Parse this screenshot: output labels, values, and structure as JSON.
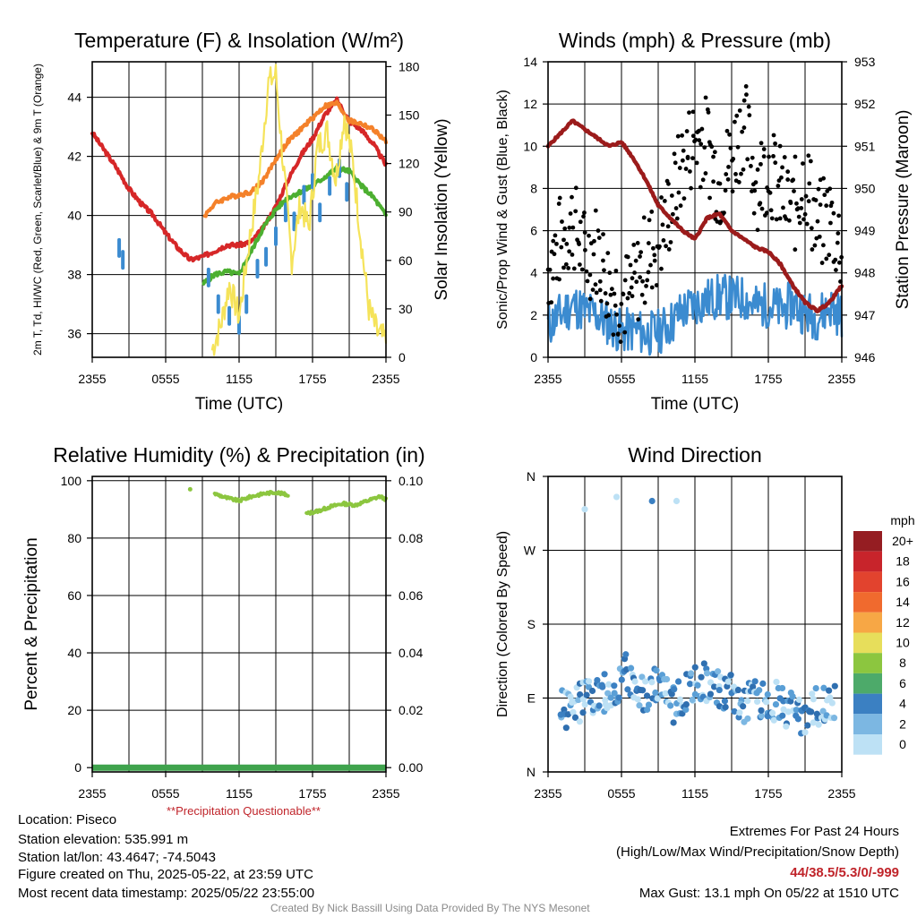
{
  "chart_data": [
    {
      "type": "line",
      "title": "Temperature (F) & Insolation (W/m²)",
      "xlabel": "Time (UTC)",
      "ylabel_left": "2m T, Td, HI/WC (Red, Green, Scarlet/Blue) & 9m T (Orange)",
      "ylabel_right": "Solar Insolation (Yellow)",
      "x_ticks": [
        "2355",
        "0555",
        "1155",
        "1755",
        "2355"
      ],
      "ylim": [
        35.2,
        45.2
      ],
      "y_ticks": [
        "36",
        "38",
        "40",
        "42",
        "44"
      ],
      "y2lim": [
        0,
        183
      ],
      "y2_ticks": [
        "0",
        "30",
        "60",
        "90",
        "120",
        "150",
        "180"
      ],
      "series": [
        {
          "key": "temp_2m",
          "color": "#d62728",
          "x": [
            0,
            1,
            2,
            3,
            4,
            5,
            6,
            7,
            8,
            9,
            10,
            11,
            12,
            13,
            14,
            15,
            16,
            17,
            18,
            19,
            20,
            21,
            22,
            23,
            24
          ],
          "values": [
            42.8,
            42.2,
            41.6,
            40.9,
            40.4,
            40.0,
            39.4,
            38.9,
            38.5,
            38.6,
            38.8,
            39.0,
            39.0,
            39.1,
            39.6,
            40.3,
            41.2,
            42.0,
            42.6,
            43.4,
            43.9,
            43.2,
            42.9,
            42.4,
            41.7
          ]
        },
        {
          "key": "temp_9m",
          "color": "#f4812a",
          "x": [
            9.2,
            10,
            11,
            12,
            13,
            14,
            15,
            16,
            17,
            18,
            19,
            20,
            21,
            22,
            23,
            24
          ],
          "values": [
            40.0,
            40.4,
            40.6,
            40.7,
            40.8,
            41.2,
            41.9,
            42.5,
            42.9,
            43.3,
            43.7,
            43.8,
            43.2,
            43.1,
            42.9,
            42.5
          ]
        },
        {
          "key": "dewpoint_2m",
          "color": "#4caf30",
          "x": [
            9.1,
            10,
            11,
            12,
            13,
            14,
            15,
            16,
            17,
            18,
            19,
            20,
            21,
            22,
            23,
            24
          ],
          "values": [
            37.7,
            38.0,
            38.1,
            38.0,
            38.8,
            39.6,
            40.2,
            40.6,
            40.8,
            41.0,
            41.3,
            41.6,
            41.5,
            41.0,
            40.6,
            40.0
          ]
        },
        {
          "key": "heat_index_wind_chill",
          "color": "#3b8bd0",
          "x": [
            2.2,
            2.5,
            9.5,
            10.3,
            11.2,
            12.0,
            12.6,
            13.5,
            14.2,
            15.0,
            15.8,
            16.5,
            17.3,
            18.0,
            18.6,
            19.4,
            20.2,
            20.8
          ],
          "values": [
            38.9,
            38.5,
            37.9,
            37.0,
            36.6,
            36.3,
            37.0,
            38.2,
            38.6,
            39.3,
            40.1,
            39.8,
            40.7,
            41.1,
            40.1,
            41.0,
            41.6,
            40.8
          ]
        },
        {
          "key": "solar_insolation",
          "axis": "right",
          "color": "#f5e35a",
          "x": [
            9.8,
            10.5,
            11.2,
            12.0,
            12.8,
            13.6,
            14.4,
            15.0,
            15.6,
            16.3,
            17.0,
            17.7,
            18.4,
            19.2,
            19.9,
            20.6,
            21.3,
            22.0,
            22.6,
            23.3,
            24.0
          ],
          "values": [
            5,
            20,
            45,
            25,
            70,
            110,
            170,
            175,
            120,
            60,
            95,
            80,
            130,
            140,
            110,
            150,
            120,
            70,
            30,
            15,
            10
          ]
        }
      ]
    },
    {
      "type": "line",
      "title": "Winds (mph) & Pressure (mb)",
      "xlabel": "Time (UTC)",
      "ylabel_left": "Sonic/Prop Wind & Gust (Blue, Black)",
      "ylabel_right": "Station Pressure (Maroon)",
      "x_ticks": [
        "2355",
        "0555",
        "1155",
        "1755",
        "2355"
      ],
      "ylim": [
        0,
        14
      ],
      "y_ticks": [
        "0",
        "2",
        "4",
        "6",
        "8",
        "10",
        "12",
        "14"
      ],
      "y2lim": [
        946,
        953
      ],
      "y2_ticks": [
        "946",
        "947",
        "948",
        "949",
        "950",
        "951",
        "952",
        "953"
      ],
      "series": [
        {
          "key": "wind_speed",
          "color": "#3b8bd0",
          "x": [
            0,
            1,
            2,
            3,
            4,
            5,
            6,
            7,
            8,
            9,
            10,
            11,
            12,
            13,
            14,
            15,
            16,
            17,
            18,
            19,
            20,
            21,
            22,
            23,
            24
          ],
          "values": [
            1.5,
            2.0,
            2.5,
            2.2,
            2.0,
            1.6,
            1.2,
            1.3,
            1.1,
            1.2,
            1.6,
            2.2,
            2.5,
            2.7,
            2.9,
            2.8,
            2.8,
            2.4,
            2.5,
            2.2,
            2.6,
            2.1,
            1.9,
            2.4,
            2.0
          ]
        },
        {
          "key": "wind_gust",
          "color": "#000000",
          "x": [
            0,
            1,
            2,
            3,
            4,
            5,
            6,
            7,
            8,
            9,
            10,
            11,
            12,
            13,
            14,
            15,
            16,
            17,
            18,
            19,
            20,
            21,
            22,
            23,
            24
          ],
          "values": [
            4.2,
            5.5,
            6.5,
            4.8,
            5.2,
            3.5,
            2.8,
            3.2,
            4.8,
            5.5,
            7.1,
            9.2,
            10.4,
            10.2,
            8.1,
            9.5,
            11.2,
            8.2,
            9.1,
            7.8,
            6.9,
            8.6,
            6.1,
            6.6,
            5.2
          ]
        },
        {
          "key": "station_pressure",
          "axis": "right",
          "color": "#9b1b1b",
          "x": [
            0,
            1,
            2,
            3,
            4,
            5,
            6,
            7,
            8,
            9,
            10,
            11,
            12,
            13,
            14,
            15,
            16,
            17,
            18,
            19,
            20,
            21,
            22,
            23,
            24
          ],
          "values": [
            951.0,
            951.3,
            951.6,
            951.4,
            951.2,
            951.0,
            951.1,
            950.7,
            950.2,
            949.6,
            949.3,
            949.0,
            948.8,
            949.3,
            949.4,
            949.0,
            948.8,
            948.6,
            948.5,
            948.2,
            947.7,
            947.3,
            947.1,
            947.3,
            947.7
          ]
        }
      ]
    },
    {
      "type": "line",
      "title": "Relative Humidity (%) & Precipitation (in)",
      "xlabel": "",
      "ylabel_left": "Percent & Precipitation",
      "x_ticks": [
        "2355",
        "0555",
        "1155",
        "1755",
        "2355"
      ],
      "ylim": [
        -1.5,
        101.5
      ],
      "y_ticks": [
        "0",
        "20",
        "40",
        "60",
        "80",
        "100"
      ],
      "y2lim": [
        -0.0015,
        0.1015
      ],
      "y2_ticks": [
        "0.00",
        "0.02",
        "0.04",
        "0.06",
        "0.08",
        "0.10"
      ],
      "note": "**Precipitation Questionable**",
      "series": [
        {
          "key": "relative_humidity",
          "color": "#8cc63f",
          "x": [
            8.0,
            10.0,
            11.0,
            12.0,
            13.0,
            14.0,
            15.0,
            16.0,
            17.5,
            18.5,
            19.5,
            20.5,
            21.5,
            22.5,
            23.5,
            24.0
          ],
          "values": [
            97.0,
            95.5,
            94.0,
            93.0,
            94.5,
            95.5,
            96.0,
            95.0,
            88.5,
            89.5,
            91.0,
            92.0,
            91.5,
            93.0,
            94.5,
            93.5
          ]
        },
        {
          "key": "precipitation",
          "color": "#3fa34d",
          "x": [
            0,
            24
          ],
          "values": [
            0,
            0
          ]
        }
      ]
    },
    {
      "type": "scatter",
      "title": "Wind Direction",
      "xlabel": "",
      "ylabel_left": "Direction (Colored By Speed)",
      "x_ticks": [
        "2355",
        "0555",
        "1155",
        "1755",
        "2355"
      ],
      "y_ticks": [
        "N",
        "E",
        "S",
        "W",
        "N"
      ],
      "ylim": [
        0,
        360
      ],
      "colorbar_unit": "mph",
      "colorbar_labels": [
        "20+",
        "18",
        "16",
        "14",
        "12",
        "10",
        "8",
        "6",
        "4",
        "2",
        "0"
      ],
      "colorbar_colors": [
        "#951d22",
        "#c8242b",
        "#e2432e",
        "#f06a2e",
        "#f7a745",
        "#e7de5b",
        "#8cc63f",
        "#4daa6a",
        "#3b80c2",
        "#7cb7e2",
        "#bde1f5"
      ],
      "series": [
        {
          "key": "direction_by_time",
          "x": [
            1.0,
            2.5,
            4.0,
            5.5,
            6.5,
            7.8,
            9.0,
            10.3,
            11.5,
            12.6,
            13.8,
            15.0,
            16.2,
            17.4,
            18.6,
            19.8,
            21.0,
            22.2,
            23.4
          ],
          "values": [
            75,
            85,
            90,
            105,
            120,
            95,
            110,
            80,
            100,
            115,
            100,
            95,
            85,
            90,
            85,
            75,
            70,
            80,
            85
          ]
        },
        {
          "key": "isolated_points",
          "x": [
            3.0,
            5.6,
            8.5,
            10.5
          ],
          "values": [
            320,
            335,
            330,
            330
          ]
        }
      ]
    }
  ],
  "info": {
    "location": "Location: Piseco",
    "elevation": "Station elevation: 535.991 m",
    "latlon": "Station lat/lon: 43.4647; -74.5043",
    "created": "Figure created on Thu, 2025-05-22, at 23:59 UTC",
    "recent": "Most recent data timestamp: 2025/05/22 23:55:00"
  },
  "extremes": {
    "heading": "Extremes For Past 24 Hours",
    "subheading": "(High/Low/Max Wind/Precipitation/Snow Depth)",
    "values": "44/38.5/5.3/0/-999",
    "max_gust": "Max Gust: 13.1 mph On 05/22 at 1510 UTC"
  },
  "credit": "Created By Nick Bassill Using Data Provided By The NYS Mesonet"
}
